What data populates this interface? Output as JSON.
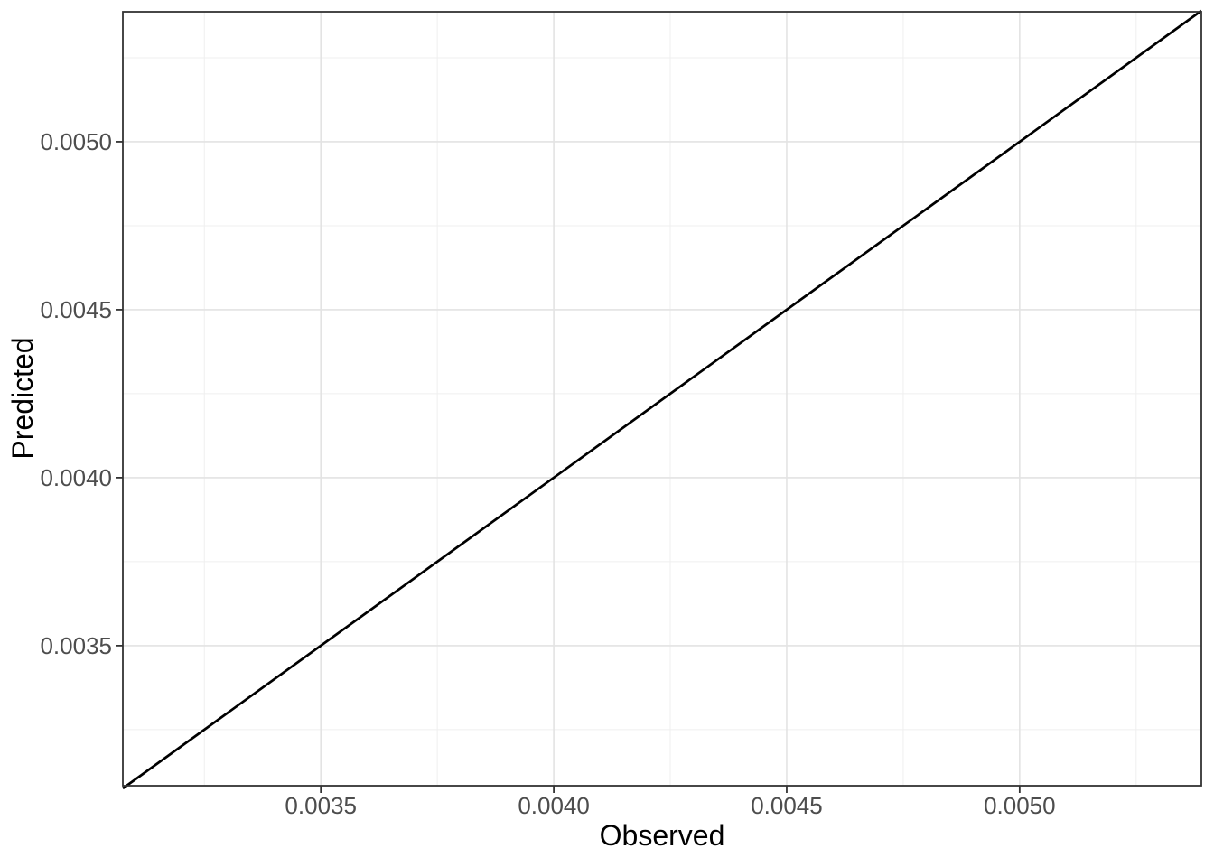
{
  "chart_data": {
    "type": "line",
    "title": "",
    "xlabel": "Observed",
    "ylabel": "Predicted",
    "xlim": [
      0.003075,
      0.00539
    ],
    "ylim": [
      0.003083,
      0.005387
    ],
    "x_ticks": [
      {
        "value": 0.0035,
        "label": "0.0035"
      },
      {
        "value": 0.004,
        "label": "0.0040"
      },
      {
        "value": 0.0045,
        "label": "0.0045"
      },
      {
        "value": 0.005,
        "label": "0.0050"
      }
    ],
    "y_ticks": [
      {
        "value": 0.0035,
        "label": "0.0035"
      },
      {
        "value": 0.004,
        "label": "0.0040"
      },
      {
        "value": 0.0045,
        "label": "0.0045"
      },
      {
        "value": 0.005,
        "label": "0.0050"
      }
    ],
    "grid": "major+minor",
    "legend": "none",
    "series": [
      {
        "name": "identity-line",
        "type": "line",
        "color": "#000000",
        "points": [
          [
            0.003075,
            0.003075
          ],
          [
            0.00539,
            0.00539
          ]
        ]
      }
    ],
    "colors": {
      "background": "#ffffff",
      "panel_background": "#ffffff",
      "panel_border": "#333333",
      "grid_major": "#e3e3e3",
      "grid_minor": "#efefef",
      "tick_mark": "#333333",
      "tick_label": "#4d4d4d",
      "axis_title": "#000000"
    }
  }
}
